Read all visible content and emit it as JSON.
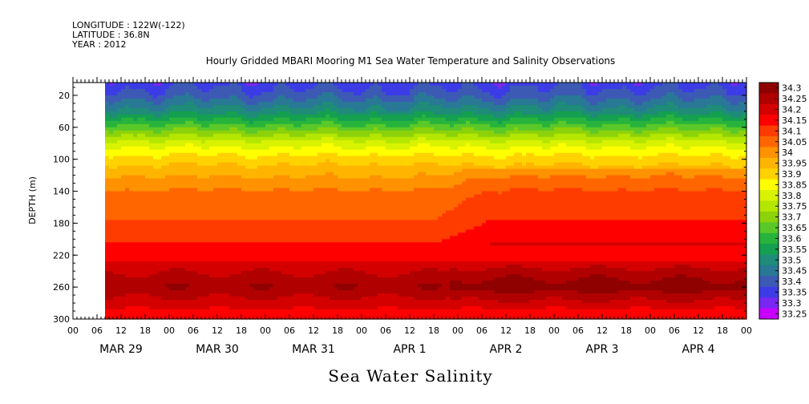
{
  "header": {
    "longitude": "LONGITUDE : 122W(-122)",
    "latitude": "LATITUDE : 36.8N",
    "year": "YEAR : 2012"
  },
  "chart_data": {
    "type": "heatmap",
    "title": "Hourly Gridded MBARI Mooring M1 Sea Water Temperature and Salinity Observations",
    "xlabel": "",
    "ylabel": "DEPTH (m)",
    "variable_label": "Sea Water Salinity",
    "y_ticks": [
      20,
      60,
      100,
      140,
      180,
      220,
      260,
      300
    ],
    "ylim": [
      300,
      4
    ],
    "x_hour_ticks": [
      "00",
      "06",
      "12",
      "18",
      "00",
      "06",
      "12",
      "18",
      "00",
      "06",
      "12",
      "18",
      "00",
      "06",
      "12",
      "18",
      "00",
      "06",
      "12",
      "18",
      "00",
      "06",
      "12",
      "18",
      "00",
      "06",
      "12",
      "18",
      "00"
    ],
    "x_date_labels": [
      "MAR 29",
      "MAR 30",
      "MAR 31",
      "APR  1",
      "APR  2",
      "APR  3",
      "APR  4"
    ],
    "xlim_hours": [
      0,
      168
    ],
    "data_start_hour": 8,
    "colorbar_levels": [
      "34.3",
      "34.25",
      "34.2",
      "34.15",
      "34.1",
      "34.05",
      "34",
      "33.95",
      "33.9",
      "33.85",
      "33.8",
      "33.75",
      "33.7",
      "33.65",
      "33.6",
      "33.55",
      "33.5",
      "33.45",
      "33.4",
      "33.35",
      "33.3",
      "33.25"
    ],
    "colorbar_colors": [
      "#8f0000",
      "#b00000",
      "#d40000",
      "#ff0000",
      "#ff3c00",
      "#ff6600",
      "#ff9200",
      "#ffb400",
      "#ffd200",
      "#ffff00",
      "#d8f200",
      "#b4e600",
      "#8cd20a",
      "#5ac828",
      "#28b43c",
      "#14a050",
      "#1e8c78",
      "#287896",
      "#3c5ab4",
      "#3c3ce6",
      "#7828f0",
      "#c800ff"
    ],
    "depth_profile_range": [
      {
        "depth": 4,
        "salinity": 33.35
      },
      {
        "depth": 20,
        "salinity": 33.4
      },
      {
        "depth": 40,
        "salinity": 33.5
      },
      {
        "depth": 60,
        "salinity": 33.65
      },
      {
        "depth": 80,
        "salinity": 33.8
      },
      {
        "depth": 100,
        "salinity": 33.9
      },
      {
        "depth": 120,
        "salinity": 33.97
      },
      {
        "depth": 140,
        "salinity": 34.03
      },
      {
        "depth": 180,
        "salinity": 34.08
      },
      {
        "depth": 220,
        "salinity": 34.15
      },
      {
        "depth": 240,
        "salinity": 34.22
      },
      {
        "depth": 260,
        "salinity": 34.27
      },
      {
        "depth": 280,
        "salinity": 34.2
      },
      {
        "depth": 300,
        "salinity": 34.15
      }
    ]
  }
}
